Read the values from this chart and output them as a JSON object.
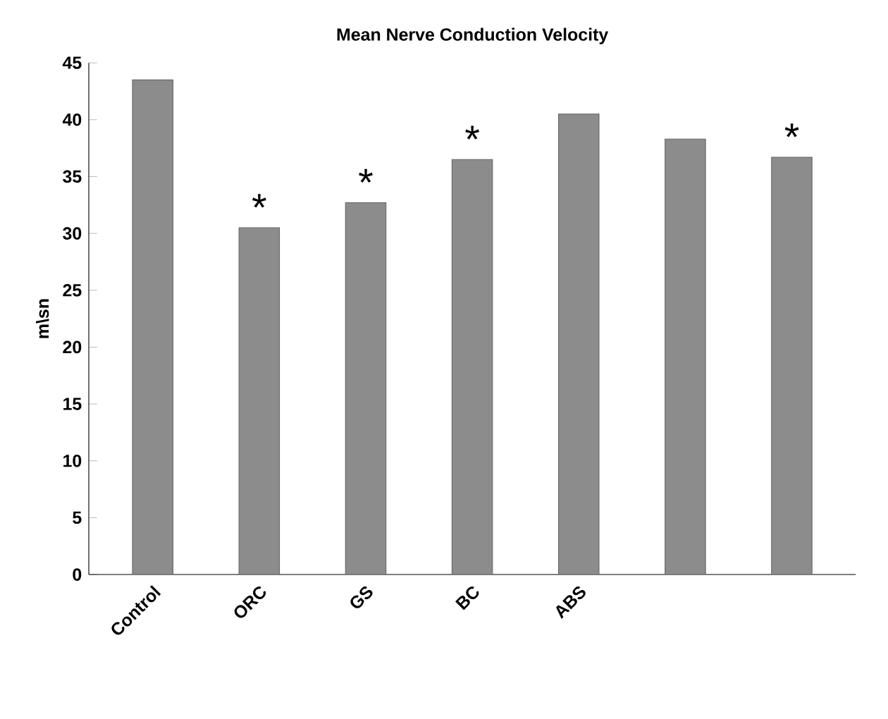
{
  "chart_data": {
    "type": "bar",
    "title": "Mean Nerve Conduction Velocity",
    "ylabel": "m\\sn",
    "categories": [
      "Control",
      "ORC",
      "GS",
      "BC",
      "ABS",
      null,
      null
    ],
    "values": [
      43.5,
      30.5,
      32.7,
      36.5,
      40.5,
      38.3,
      36.7
    ],
    "color": "#8c8c8c",
    "ylim": [
      0,
      45
    ],
    "yticks": [
      0,
      5,
      10,
      15,
      20,
      25,
      30,
      35,
      40,
      45
    ],
    "grid": false,
    "annotations": [
      {
        "text": "*",
        "x": "ORC",
        "y": 30.5
      },
      {
        "text": "*",
        "x": "GS",
        "y": 32.7
      },
      {
        "text": "*",
        "x": "BC",
        "y": 36.5
      },
      {
        "text": "*",
        "y": 36.7
      }
    ]
  }
}
